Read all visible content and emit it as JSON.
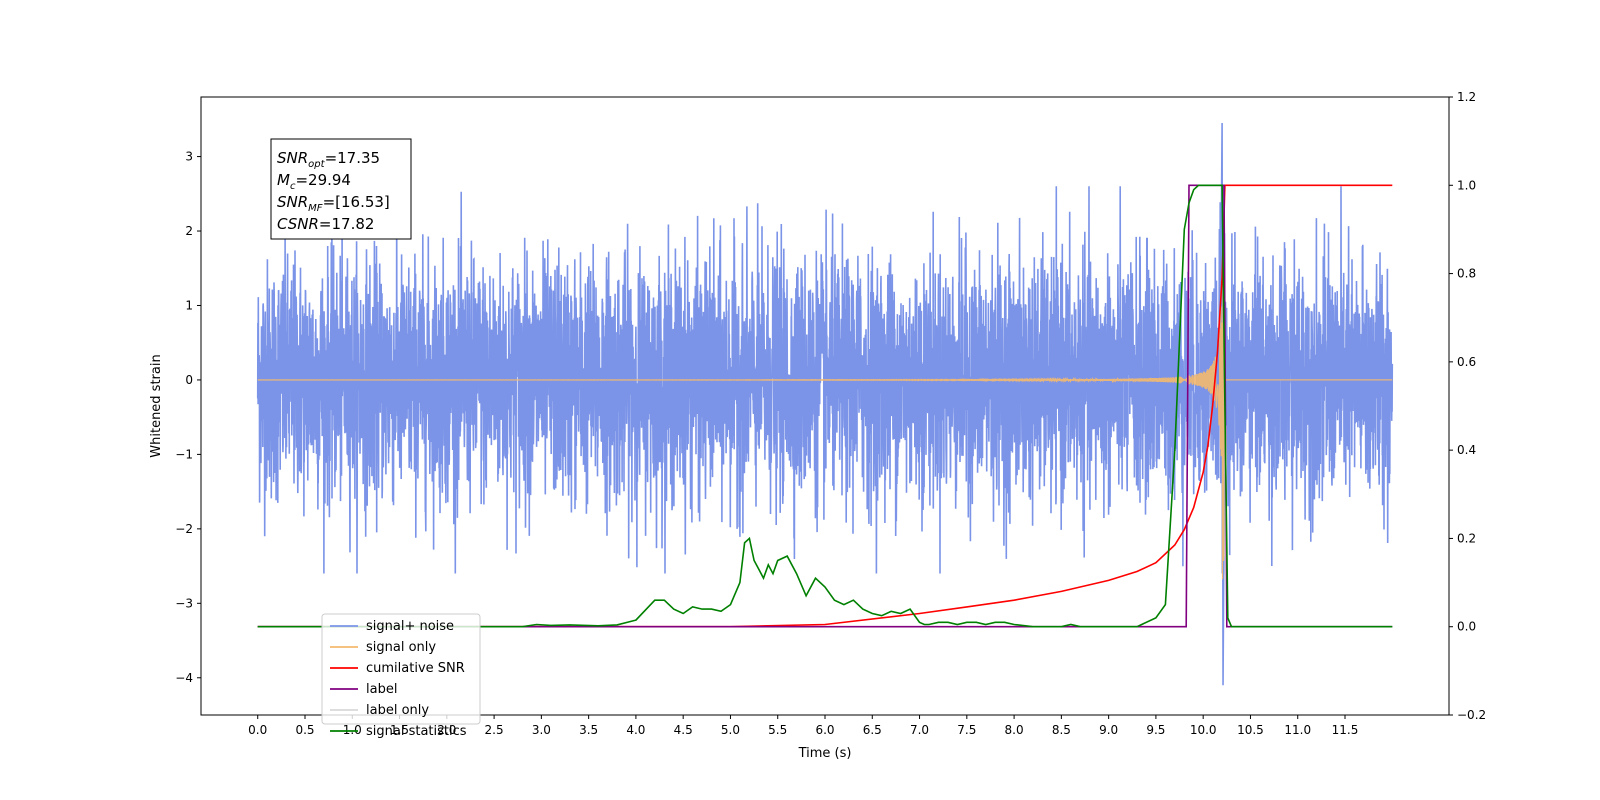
{
  "chart_data": {
    "type": "line",
    "title": "",
    "xlabel": "Time (s)",
    "ylabel": "Whitened strain",
    "ylabel_right": "",
    "xlim": [
      -0.6,
      12.6
    ],
    "ylim": [
      -4.5,
      3.8
    ],
    "ylim_right": [
      -0.2,
      1.2
    ],
    "x_ticks": [
      "0.0",
      "0.5",
      "1.0",
      "1.5",
      "2.0",
      "2.5",
      "3.0",
      "3.5",
      "4.0",
      "4.5",
      "5.0",
      "5.5",
      "6.0",
      "6.5",
      "7.0",
      "7.5",
      "8.0",
      "8.5",
      "9.0",
      "9.5",
      "10.0",
      "10.5",
      "11.0",
      "11.5"
    ],
    "y_ticks": [
      "3",
      "2",
      "1",
      "0",
      "−1",
      "−2",
      "−3",
      "−4"
    ],
    "y_ticks_right": [
      "1.2",
      "1.0",
      "0.8",
      "0.6",
      "0.4",
      "0.2",
      "0.0",
      "−0.2"
    ],
    "grid": false,
    "legend_position": "lower-left",
    "annotation": {
      "lines": [
        {
          "label": "SNR",
          "sub": "opt",
          "value": "=17.35"
        },
        {
          "label": "M",
          "sub": "c",
          "value": "=29.94"
        },
        {
          "label": "SNR",
          "sub": "MF",
          "value": "=[16.53]"
        },
        {
          "label": "CSNR",
          "sub": "",
          "value": "=17.82"
        }
      ]
    },
    "series": [
      {
        "name": "signal+ noise",
        "axis": "left",
        "color": "#7b94e8",
        "description": "noisy whitened strain, roughly Gaussian with std ~0.8 from t=0 to 12 s, with peak excursion 3.45 near t=10.2 s and minimum -4.1 near t=10.2 s",
        "x_range": [
          0.0,
          12.0
        ],
        "noise_std": 0.8,
        "peak": {
          "x": 10.2,
          "max": 3.45,
          "min": -4.1
        }
      },
      {
        "name": "signal only",
        "axis": "left",
        "color": "#f5b96e",
        "description": "chirp growing in amplitude to about 3.1 at merger t=10.22 s, zero elsewhere",
        "x_range": [
          0.0,
          12.0
        ],
        "merger_time": 10.22,
        "peak_amplitude": 3.1
      },
      {
        "name": "cumilative SNR",
        "axis": "right",
        "color": "#ff0000",
        "x": [
          0.0,
          5.0,
          6.0,
          7.0,
          7.5,
          8.0,
          8.5,
          9.0,
          9.3,
          9.5,
          9.7,
          9.8,
          9.9,
          10.0,
          10.05,
          10.1,
          10.15,
          10.2,
          10.23,
          10.25,
          12.0
        ],
        "y": [
          0.0,
          0.0,
          0.005,
          0.03,
          0.045,
          0.06,
          0.08,
          0.105,
          0.125,
          0.145,
          0.185,
          0.22,
          0.27,
          0.35,
          0.41,
          0.5,
          0.62,
          0.79,
          1.0,
          1.0,
          1.0
        ]
      },
      {
        "name": "label",
        "axis": "right",
        "color": "#800080",
        "x": [
          0.0,
          9.82,
          9.85,
          10.22,
          10.25,
          12.0
        ],
        "y": [
          0.0,
          0.0,
          1.0,
          1.0,
          0.0,
          0.0
        ]
      },
      {
        "name": "label only",
        "axis": "right",
        "color": "#d8d8d8",
        "hidden_in_plot": true
      },
      {
        "name": "signal statistics",
        "axis": "right",
        "color": "#008000",
        "x": [
          0.0,
          2.8,
          2.95,
          3.1,
          3.3,
          3.6,
          3.8,
          4.0,
          4.2,
          4.3,
          4.4,
          4.5,
          4.6,
          4.7,
          4.8,
          4.9,
          5.0,
          5.1,
          5.15,
          5.2,
          5.25,
          5.3,
          5.35,
          5.4,
          5.45,
          5.5,
          5.6,
          5.7,
          5.8,
          5.9,
          6.0,
          6.1,
          6.2,
          6.3,
          6.4,
          6.5,
          6.6,
          6.7,
          6.8,
          6.9,
          7.0,
          7.05,
          7.1,
          7.2,
          7.3,
          7.4,
          7.5,
          7.6,
          7.7,
          7.8,
          7.9,
          8.0,
          8.2,
          8.5,
          8.6,
          8.7,
          8.8,
          9.0,
          9.3,
          9.5,
          9.6,
          9.7,
          9.8,
          9.85,
          9.9,
          9.95,
          10.0,
          10.05,
          10.1,
          10.15,
          10.2,
          10.23,
          10.26,
          10.3,
          12.0
        ],
        "y": [
          0.0,
          0.0,
          0.005,
          0.003,
          0.004,
          0.002,
          0.004,
          0.015,
          0.06,
          0.06,
          0.04,
          0.03,
          0.045,
          0.04,
          0.04,
          0.035,
          0.05,
          0.1,
          0.19,
          0.2,
          0.15,
          0.13,
          0.11,
          0.14,
          0.12,
          0.15,
          0.16,
          0.12,
          0.07,
          0.11,
          0.09,
          0.06,
          0.05,
          0.06,
          0.04,
          0.03,
          0.025,
          0.035,
          0.03,
          0.04,
          0.01,
          0.005,
          0.005,
          0.01,
          0.01,
          0.005,
          0.01,
          0.01,
          0.005,
          0.01,
          0.01,
          0.005,
          0.0,
          0.0,
          0.005,
          0.0,
          0.0,
          0.0,
          0.0,
          0.02,
          0.05,
          0.4,
          0.9,
          0.96,
          0.99,
          1.0,
          1.0,
          1.0,
          1.0,
          1.0,
          1.0,
          0.5,
          0.02,
          0.0,
          0.0
        ]
      }
    ]
  }
}
